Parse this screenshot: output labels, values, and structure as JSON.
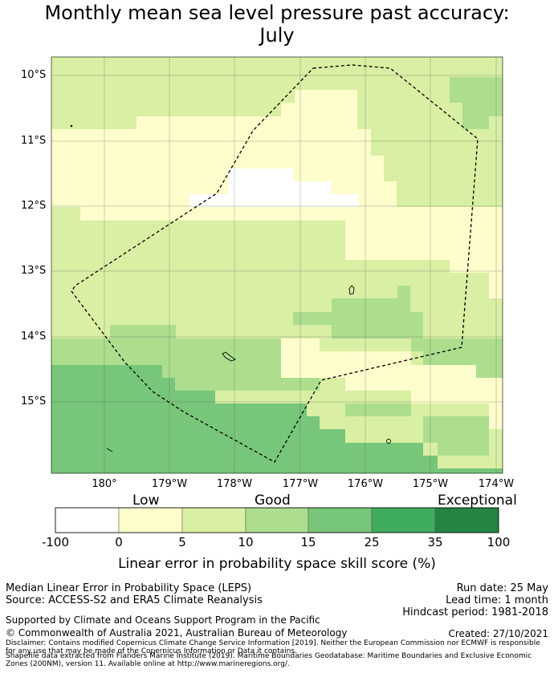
{
  "title_line1": "Monthly mean sea level pressure past accuracy:",
  "title_line2": "July",
  "colors": {
    "white": "#ffffff",
    "pale_yellow": "#fefdcc",
    "light_green": "#d9efa3",
    "mid_green": "#acde8e",
    "green": "#78c679",
    "dark_green": "#3fac5c",
    "darkest_green": "#238443",
    "grid": "#555555"
  },
  "map": {
    "lat_labels": [
      "10°S",
      "11°S",
      "12°S",
      "13°S",
      "14°S",
      "15°S"
    ],
    "lon_labels": [
      "180°",
      "179°W",
      "178°W",
      "177°W",
      "176°W",
      "175°W",
      "174°W"
    ]
  },
  "colorbar": {
    "categories": [
      "Low",
      "Good",
      "Exceptional"
    ],
    "ticks": [
      "-100",
      "0",
      "5",
      "10",
      "15",
      "25",
      "35",
      "100"
    ],
    "title": "Linear error in probability space skill score (%)"
  },
  "footer": {
    "left1": "Median Linear Error in Probability Space (LEPS)",
    "left2": "Source: ACCESS-S2 and ERA5 Climate Reanalysis",
    "right1": "Run date: 25 May",
    "right2": "Lead time: 1 month",
    "right3": "Hindcast period: 1981-2018",
    "supported": "Supported by Climate and Oceans Support Program in the Pacific",
    "copyright": "© Commonwealth of Australia 2021, Australian Bureau of Meteorology",
    "created": "Created: 27/10/2021",
    "disclaimer1": "Disclaimer: Contains modified Copernicus Climate Change Service Information [2019]. Neither the European Commission nor ECMWF is responsible for any use that may be made of the Copernicus Information or Data it contains.",
    "disclaimer2": "Shapefile data extracted from Flanders Marine Institute (2019). Maritime Boundaries Geodatabase: Maritime Boundaries and Exclusive Economic Zones (200NM), version 11. Available online at http://www.marineregions.org/."
  }
}
